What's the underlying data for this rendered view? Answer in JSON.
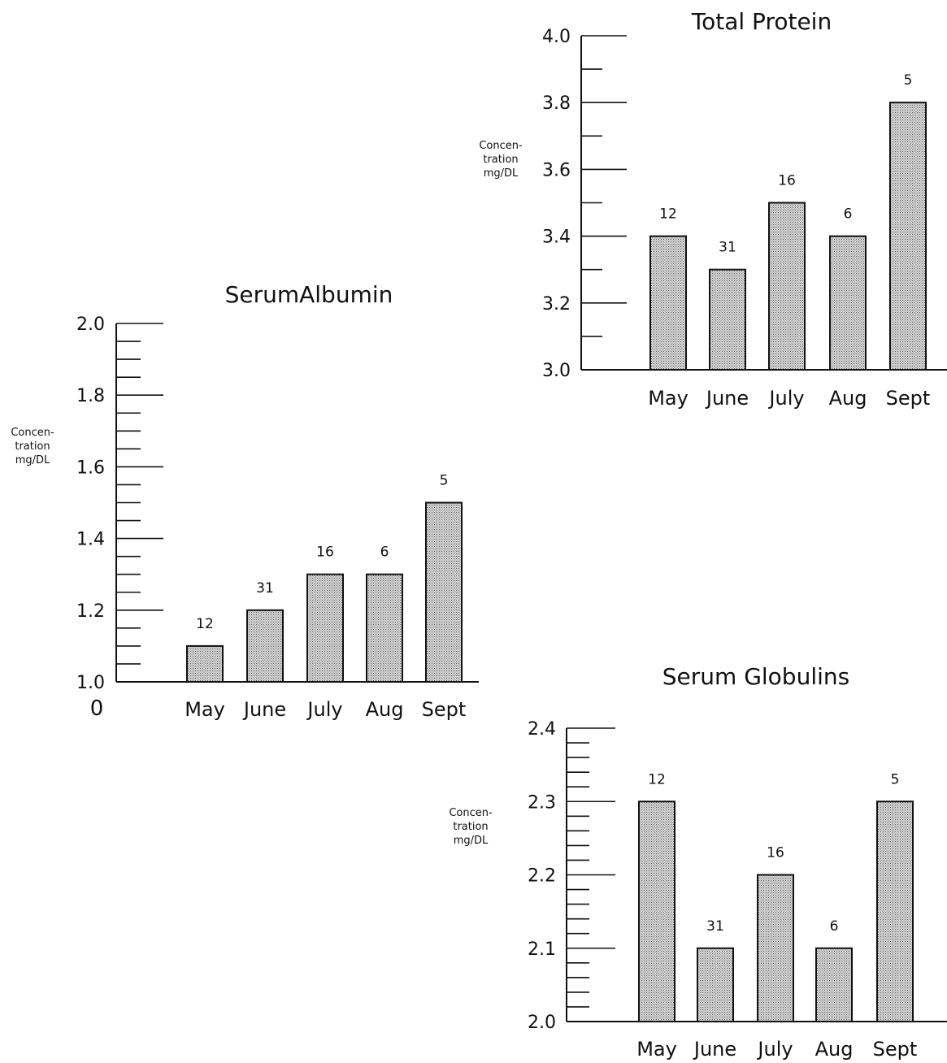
{
  "chart_data": [
    {
      "id": "total-protein",
      "type": "bar",
      "title": "Total Protein",
      "ylabel": [
        "Concen-",
        "tration",
        "mg/DL"
      ],
      "categories": [
        "May",
        "June",
        "July",
        "Aug",
        "Sept"
      ],
      "values": [
        3.4,
        3.3,
        3.5,
        3.4,
        3.8
      ],
      "bar_labels": [
        "12",
        "31",
        "16",
        "6",
        "5"
      ],
      "ylim": [
        3.0,
        4.0
      ],
      "major_ticks": [
        3.0,
        3.2,
        3.4,
        3.6,
        3.8,
        4.0
      ],
      "major_tick_labels": [
        "3.0",
        "3.2",
        "3.4",
        "3.6",
        "3.8",
        "4.0"
      ],
      "minor_step": 0.1,
      "grid": false
    },
    {
      "id": "serum-albumin",
      "type": "bar",
      "title": "SerumAlbumin",
      "ylabel": [
        "Concen-",
        "tration",
        "mg/DL"
      ],
      "categories": [
        "May",
        "June",
        "July",
        "Aug",
        "Sept"
      ],
      "values": [
        1.1,
        1.2,
        1.3,
        1.3,
        1.5
      ],
      "bar_labels": [
        "12",
        "31",
        "16",
        "6",
        "5"
      ],
      "ylim": [
        1.0,
        2.0
      ],
      "major_ticks": [
        1.0,
        1.2,
        1.4,
        1.6,
        1.8,
        2.0
      ],
      "major_tick_labels": [
        "1.0",
        "1.2",
        "1.4",
        "1.6",
        "1.8",
        "2.0"
      ],
      "minor_step": 0.05,
      "extra_label": "0",
      "grid": false
    },
    {
      "id": "serum-globulins",
      "type": "bar",
      "title": "Serum Globulins",
      "ylabel": [
        "Concen-",
        "tration",
        "mg/DL"
      ],
      "categories": [
        "May",
        "June",
        "July",
        "Aug",
        "Sept"
      ],
      "values": [
        2.3,
        2.1,
        2.2,
        2.1,
        2.3
      ],
      "bar_labels": [
        "12",
        "31",
        "16",
        "6",
        "5"
      ],
      "ylim": [
        2.0,
        2.4
      ],
      "major_ticks": [
        2.0,
        2.1,
        2.2,
        2.3,
        2.4
      ],
      "major_tick_labels": [
        "2.0",
        "2.1",
        "2.2",
        "2.3",
        "2.4"
      ],
      "minor_step": 0.02,
      "grid": false
    }
  ]
}
